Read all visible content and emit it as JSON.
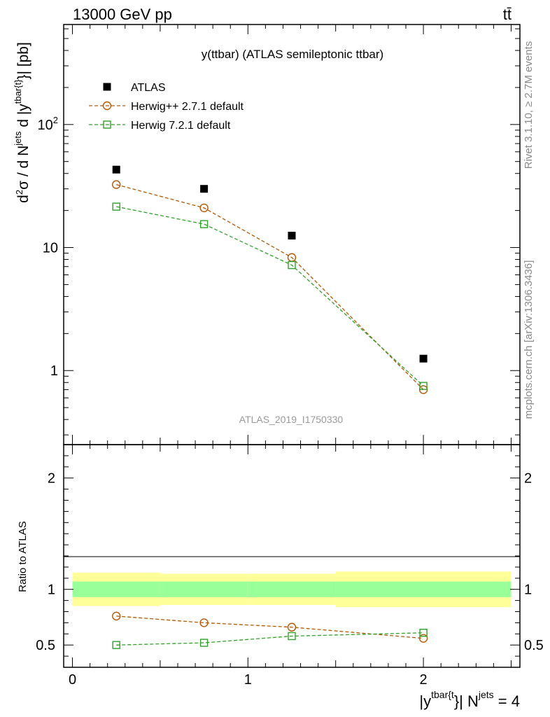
{
  "header": {
    "left": "13000 GeV pp",
    "right": "tt̄"
  },
  "side": {
    "rivet": "Rivet 3.1.10, ≥ 2.7M events",
    "mcplots": "mcplots.cern.ch [arXiv:1306.3436]"
  },
  "chart_data": [
    {
      "type": "scatter",
      "title": "y(ttbar) (ATLAS semileptonic ttbar)",
      "ylabel": "d²σ / d N^jets d |y^tbar{t}| [pb]",
      "yscale": "log",
      "ylim": [
        0.25,
        650
      ],
      "xlim": [
        -0.05,
        2.55
      ],
      "y_tick_labels": [
        "1",
        "10",
        "10²"
      ],
      "x": [
        0.25,
        0.75,
        1.25,
        2.0
      ],
      "series": [
        {
          "name": "ATLAS",
          "values": [
            43,
            30,
            12.5,
            1.25
          ],
          "color": "#000000",
          "marker": "filled-square"
        },
        {
          "name": "Herwig++ 2.7.1 default",
          "values": [
            32.5,
            21,
            8.3,
            0.7
          ],
          "color": "#b35806",
          "marker": "open-circle",
          "line": "dashed"
        },
        {
          "name": "Herwig 7.2.1 default",
          "values": [
            21.5,
            15.5,
            7.2,
            0.75
          ],
          "color": "#33a02c",
          "marker": "open-square",
          "line": "dashed"
        }
      ],
      "legend_position": "top-left",
      "analysis_label": "ATLAS_2019_I1750330"
    },
    {
      "type": "line",
      "ylabel": "Ratio to ATLAS",
      "ylim": [
        0.3,
        2.3
      ],
      "y_tick_labels": [
        "0.5",
        "1",
        "2"
      ],
      "x_tick_labels": [
        "0",
        "1",
        "2"
      ],
      "xlabel": "|y^tbar{t}| N^jets = 4",
      "x": [
        0.25,
        0.75,
        1.25,
        2.0
      ],
      "bands": {
        "bins": [
          [
            0,
            0.5
          ],
          [
            0.5,
            1.0
          ],
          [
            1.0,
            1.5
          ],
          [
            1.5,
            2.5
          ]
        ],
        "stat_low": [
          0.93,
          0.93,
          0.93,
          0.93
        ],
        "stat_high": [
          1.07,
          1.07,
          1.07,
          1.07
        ],
        "total_low": [
          0.85,
          0.86,
          0.86,
          0.84
        ],
        "total_high": [
          1.15,
          1.14,
          1.14,
          1.16
        ],
        "inner_color": "#99ff99",
        "outer_color": "#ffff99"
      },
      "series": [
        {
          "name": "Herwig++ 2.7.1 default",
          "values": [
            0.76,
            0.7,
            0.66,
            0.56
          ],
          "color": "#b35806",
          "marker": "open-circle"
        },
        {
          "name": "Herwig 7.2.1 default",
          "values": [
            0.5,
            0.52,
            0.58,
            0.61
          ],
          "color": "#33a02c",
          "marker": "open-square"
        }
      ]
    }
  ]
}
